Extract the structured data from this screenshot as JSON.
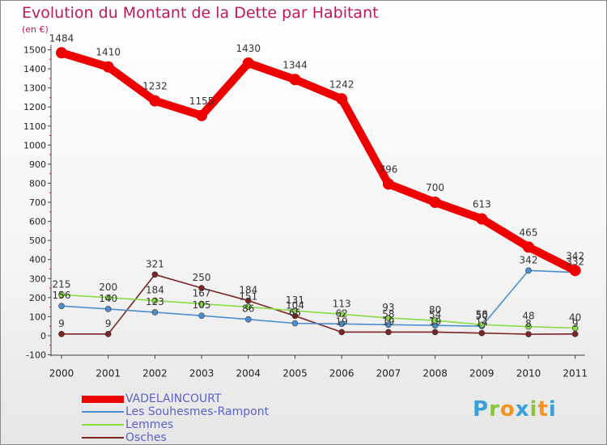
{
  "title": "Evolution du Montant de la Dette par Habitant",
  "unit_label": "(en €)",
  "brand": {
    "text": "Proxiti",
    "letters": [
      {
        "ch": "P",
        "color": "#3aa0da"
      },
      {
        "ch": "r",
        "color": "#8bc53f"
      },
      {
        "ch": "o",
        "color": "#f7941d"
      },
      {
        "ch": "x",
        "color": "#3aa0da"
      },
      {
        "ch": "i",
        "color": "#8bc53f"
      },
      {
        "ch": "t",
        "color": "#f7941d"
      },
      {
        "ch": "i",
        "color": "#3aa0da"
      }
    ]
  },
  "chart_data": {
    "type": "line",
    "title": "Evolution du Montant de la Dette par Habitant",
    "ylabel": "(en €)",
    "xlabel": "",
    "x": [
      "2000",
      "2001",
      "2002",
      "2003",
      "2004",
      "2005",
      "2006",
      "2007",
      "2008",
      "2009",
      "2010",
      "2011"
    ],
    "ylim": [
      -100,
      1500
    ],
    "yticks": [
      -100,
      0,
      100,
      200,
      300,
      400,
      500,
      600,
      700,
      800,
      900,
      1000,
      1100,
      1200,
      1300,
      1400,
      1500
    ],
    "grid": false,
    "legend_position": "bottom-left",
    "series": [
      {
        "name": "VADELAINCOURT",
        "color": "#ee0000",
        "values": [
          1484,
          1410,
          1232,
          1155,
          1430,
          1344,
          1242,
          796,
          700,
          613,
          465,
          342
        ]
      },
      {
        "name": "Les Souhesmes-Rampont",
        "color": "#4a8fcf",
        "values": [
          156,
          140,
          123,
          105,
          86,
          65,
          62,
          58,
          54,
          50,
          342,
          332
        ]
      },
      {
        "name": "Lemmes",
        "color": "#88dd44",
        "values": [
          215,
          200,
          184,
          167,
          151,
          131,
          113,
          93,
          80,
          58,
          48,
          40
        ]
      },
      {
        "name": "Osches",
        "color": "#7b2525",
        "values": [
          9,
          9,
          321,
          250,
          184,
          104,
          19,
          19,
          19,
          14,
          8,
          9
        ]
      }
    ]
  }
}
